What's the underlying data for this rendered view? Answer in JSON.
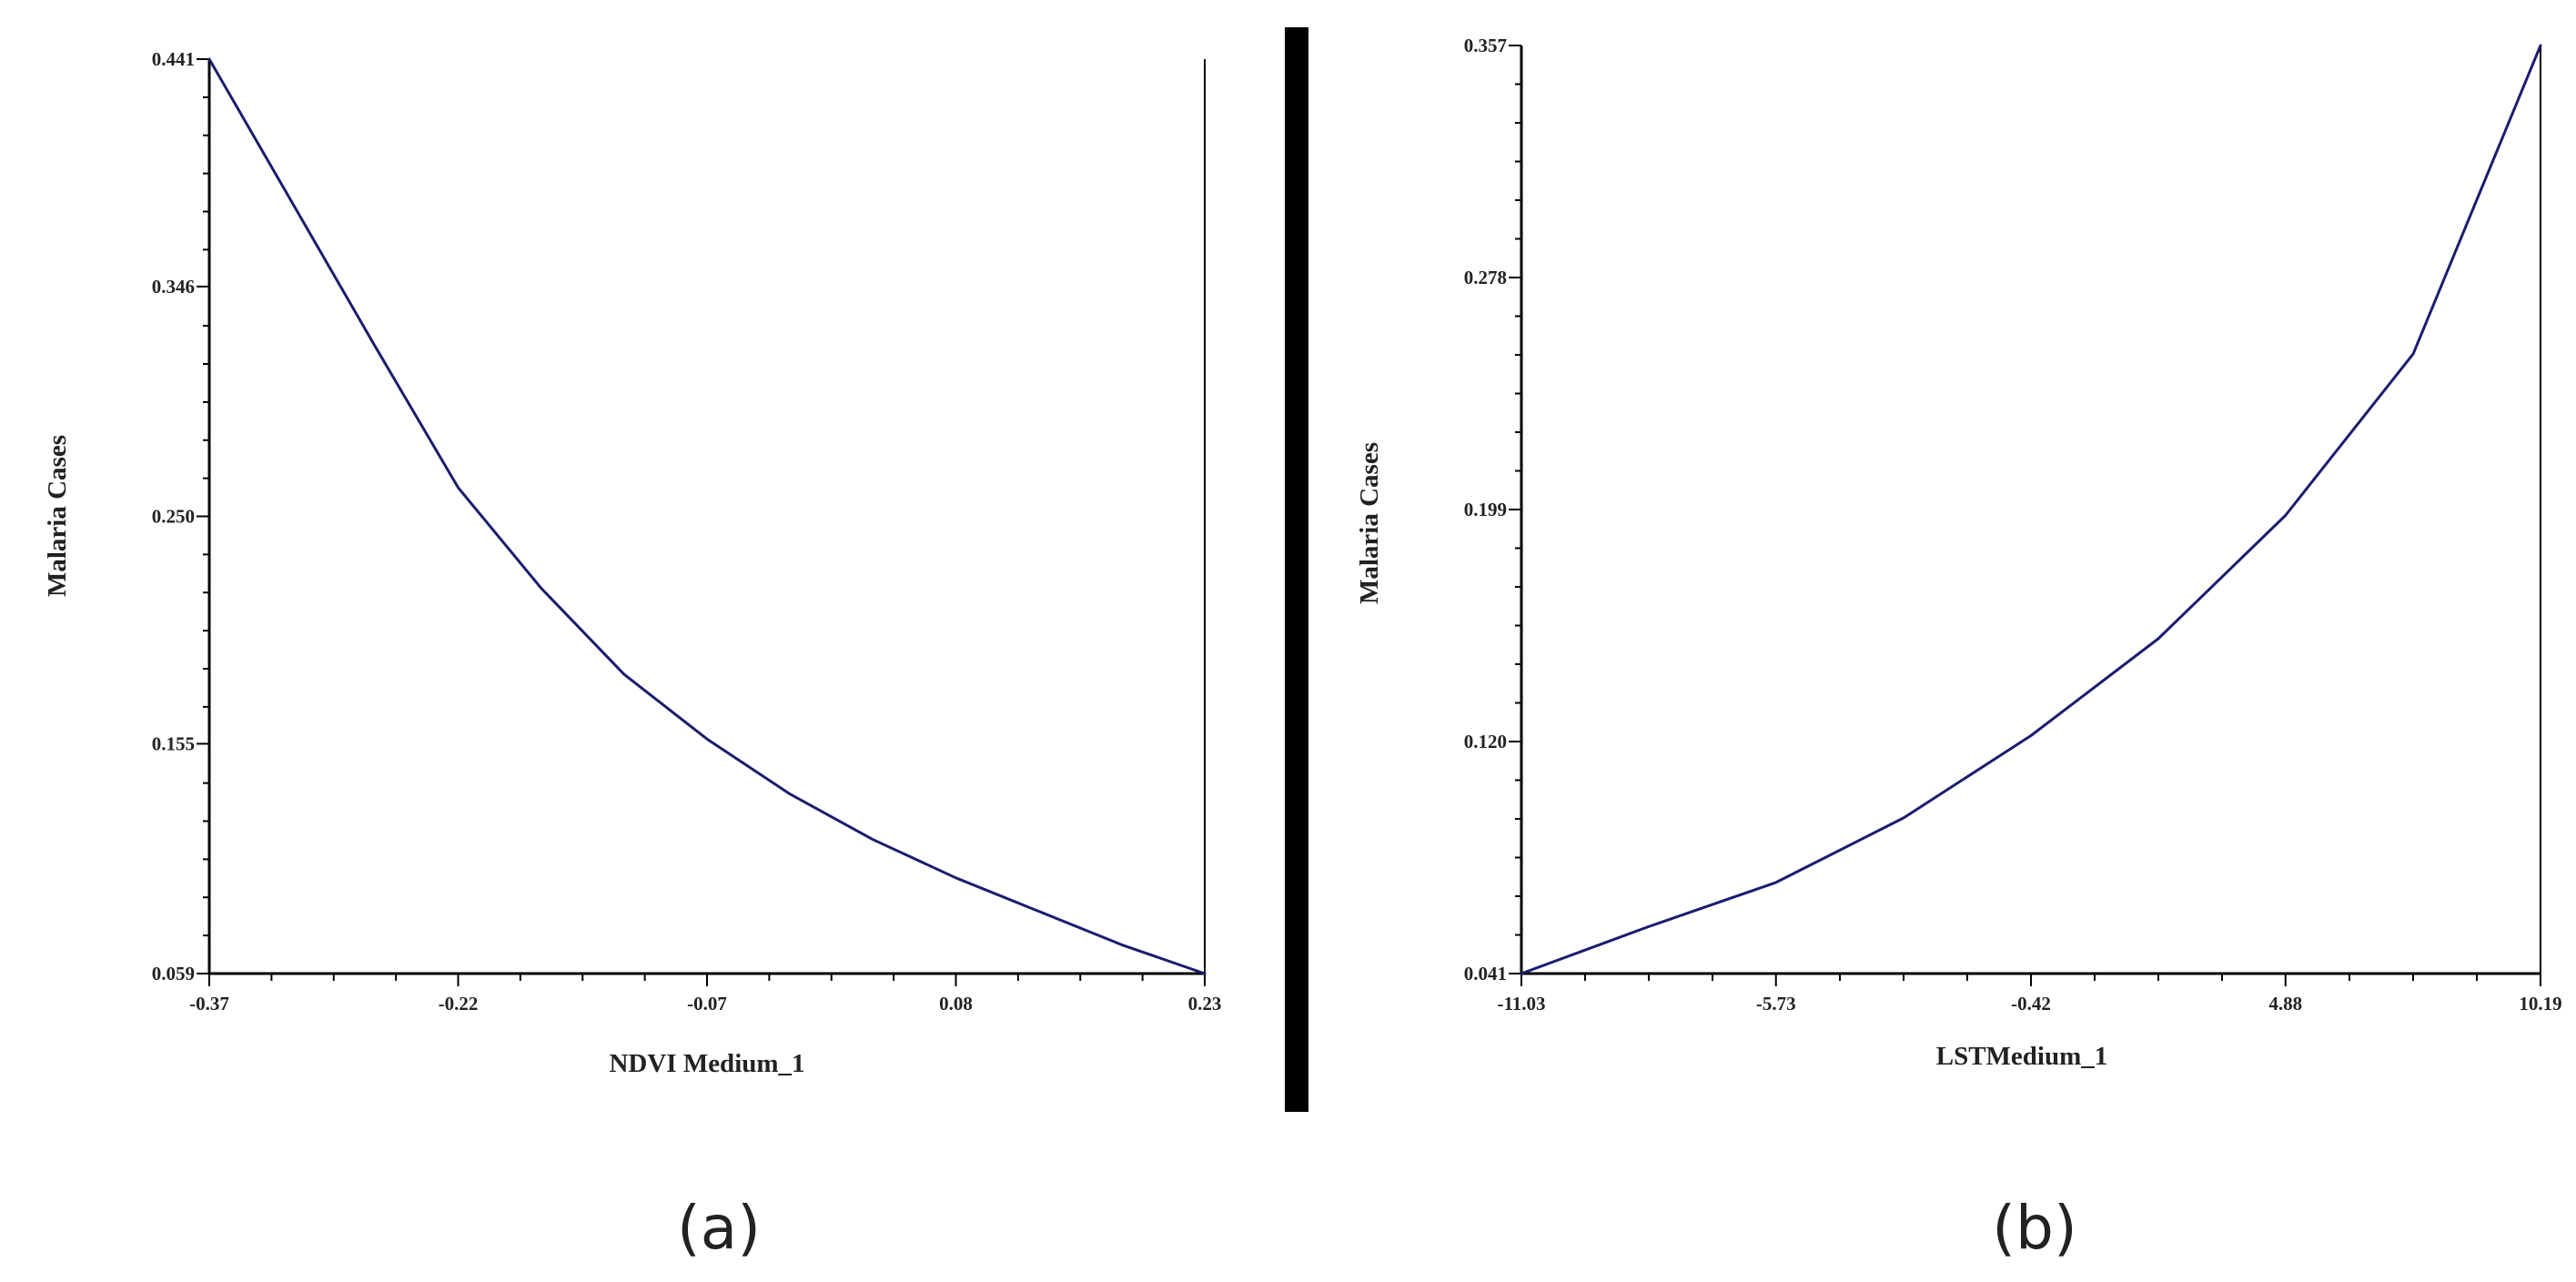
{
  "colors": {
    "series": "#1c1c6e",
    "divider": "#000000"
  },
  "chart_data": [
    {
      "type": "line",
      "panel_label": "(a)",
      "xlabel": "NDVI Medium_1",
      "ylabel": "Malaria Cases",
      "xlim": [
        -0.37,
        0.23
      ],
      "ylim": [
        0.059,
        0.441
      ],
      "x_ticks": [
        "-0.37",
        "-0.22",
        "-0.07",
        "0.08",
        "0.23"
      ],
      "y_ticks": [
        "0.059",
        "0.155",
        "0.250",
        "0.346",
        "0.441"
      ],
      "grid": false,
      "series": [
        {
          "x": [
            -0.37,
            -0.32,
            -0.27,
            -0.22,
            -0.17,
            -0.12,
            -0.07,
            -0.02,
            0.03,
            0.08,
            0.13,
            0.18,
            0.23
          ],
          "y": [
            0.441,
            0.381,
            0.321,
            0.262,
            0.22,
            0.184,
            0.157,
            0.134,
            0.115,
            0.099,
            0.085,
            0.071,
            0.059
          ]
        }
      ]
    },
    {
      "type": "line",
      "panel_label": "(b)",
      "xlabel": "LSTMedium_1",
      "ylabel": "Malaria Cases",
      "xlim": [
        -11.03,
        10.19
      ],
      "ylim": [
        0.041,
        0.357
      ],
      "x_ticks": [
        "-11.03",
        "-5.73",
        "-0.42",
        "4.88",
        "10.19"
      ],
      "y_ticks": [
        "0.041",
        "0.120",
        "0.199",
        "0.278",
        "0.357"
      ],
      "grid": false,
      "series": [
        {
          "x": [
            -11.03,
            -8.38,
            -5.73,
            -3.07,
            -0.42,
            2.23,
            4.88,
            7.54,
            10.19
          ],
          "y": [
            0.041,
            0.057,
            0.072,
            0.094,
            0.122,
            0.155,
            0.197,
            0.252,
            0.357
          ]
        }
      ]
    }
  ]
}
